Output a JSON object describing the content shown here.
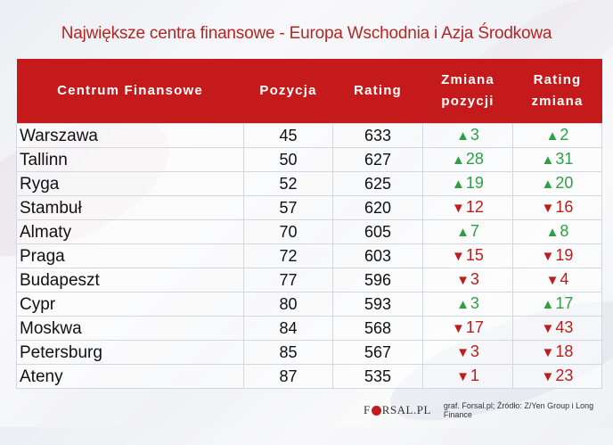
{
  "title": "Największe centra finansowe - Europa Wschodnia i Azja Środkowa",
  "table": {
    "headers": [
      {
        "line1": "Centrum Finansowe",
        "line2": ""
      },
      {
        "line1": "Pozycja",
        "line2": ""
      },
      {
        "line1": "Rating",
        "line2": ""
      },
      {
        "line1": "Zmiana",
        "line2": "pozycji"
      },
      {
        "line1": "Rating",
        "line2": "zmiana"
      }
    ],
    "rows": [
      {
        "city": "Warszawa",
        "position": "45",
        "rating": "633",
        "pos_change": {
          "dir": "up",
          "arrow": "▲",
          "value": "3"
        },
        "rating_change": {
          "dir": "up",
          "arrow": "▲",
          "value": "2"
        }
      },
      {
        "city": "Tallinn",
        "position": "50",
        "rating": "627",
        "pos_change": {
          "dir": "up",
          "arrow": "▲",
          "value": "28"
        },
        "rating_change": {
          "dir": "up",
          "arrow": "▲",
          "value": "31"
        }
      },
      {
        "city": "Ryga",
        "position": "52",
        "rating": "625",
        "pos_change": {
          "dir": "up",
          "arrow": "▲",
          "value": "19"
        },
        "rating_change": {
          "dir": "up",
          "arrow": "▲",
          "value": "20"
        }
      },
      {
        "city": "Stambuł",
        "position": "57",
        "rating": "620",
        "pos_change": {
          "dir": "down",
          "arrow": "▼",
          "value": "12"
        },
        "rating_change": {
          "dir": "down",
          "arrow": "▼",
          "value": "16"
        }
      },
      {
        "city": "Almaty",
        "position": "70",
        "rating": "605",
        "pos_change": {
          "dir": "up",
          "arrow": "▲",
          "value": "7"
        },
        "rating_change": {
          "dir": "up",
          "arrow": "▲",
          "value": "8"
        }
      },
      {
        "city": "Praga",
        "position": "72",
        "rating": "603",
        "pos_change": {
          "dir": "down",
          "arrow": "▼",
          "value": "15"
        },
        "rating_change": {
          "dir": "down",
          "arrow": "▼",
          "value": "19"
        }
      },
      {
        "city": "Budapeszt",
        "position": "77",
        "rating": "596",
        "pos_change": {
          "dir": "down",
          "arrow": "▼",
          "value": "3"
        },
        "rating_change": {
          "dir": "down",
          "arrow": "▼",
          "value": "4"
        }
      },
      {
        "city": "Cypr",
        "position": "80",
        "rating": "593",
        "pos_change": {
          "dir": "up",
          "arrow": "▲",
          "value": "3"
        },
        "rating_change": {
          "dir": "up",
          "arrow": "▲",
          "value": "17"
        }
      },
      {
        "city": "Moskwa",
        "position": "84",
        "rating": "568",
        "pos_change": {
          "dir": "down",
          "arrow": "▼",
          "value": "17"
        },
        "rating_change": {
          "dir": "down",
          "arrow": "▼",
          "value": "43"
        }
      },
      {
        "city": "Petersburg",
        "position": "85",
        "rating": "567",
        "pos_change": {
          "dir": "down",
          "arrow": "▼",
          "value": "3"
        },
        "rating_change": {
          "dir": "down",
          "arrow": "▼",
          "value": "18"
        }
      },
      {
        "city": "Ateny",
        "position": "87",
        "rating": "535",
        "pos_change": {
          "dir": "down",
          "arrow": "▼",
          "value": "1"
        },
        "rating_change": {
          "dir": "down",
          "arrow": "▼",
          "value": "23"
        }
      }
    ]
  },
  "footer": {
    "logo_left": "F",
    "logo_right": "RSAL.PL",
    "source": "graf. Forsal.pl; Źródło: Z/Yen Group i Long Finance"
  },
  "colors": {
    "title": "#b32624",
    "header_bg": "#c41a1b",
    "up": "#2e9f45",
    "down": "#bd1d1d"
  }
}
